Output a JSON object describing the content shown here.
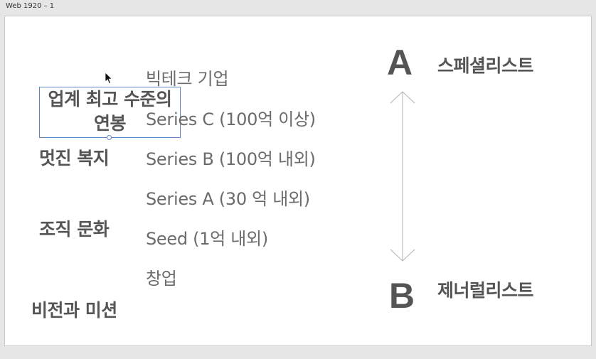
{
  "window": {
    "frame_label": "Web 1920 – 1"
  },
  "left_items": {
    "salary": "업계 최고 수준의 연봉",
    "welfare": "멋진 복지",
    "culture": "조직 문화",
    "vision": "비전과 미션"
  },
  "stages": [
    "빅테크 기업",
    "Series C (100억 이상)",
    "Series B (100억 내외)",
    "Series A (30 억 내외)",
    "Seed (1억 내외)",
    "창업"
  ],
  "scale": {
    "top_letter": "A",
    "top_role": "스페셜리스트",
    "bottom_letter": "B",
    "bottom_role": "제너럴리스트"
  },
  "icons": {
    "cursor": "arrow-cursor-icon",
    "scale": "double-headed-arrow-icon"
  }
}
